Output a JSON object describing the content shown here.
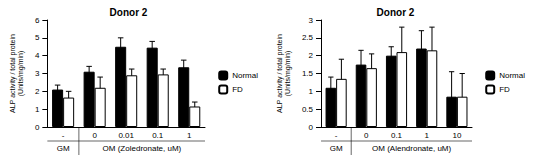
{
  "chart_data": [
    {
      "type": "bar",
      "title": "Donor 2",
      "y_label": "ALP activity / total protein\n(Units/mg/min)",
      "categories": [
        "-",
        "0",
        "0.01",
        "0.1",
        "1"
      ],
      "category_groups": [
        "GM",
        "OM (Zoledronate, uM)",
        "OM (Zoledronate, uM)",
        "OM (Zoledronate, uM)",
        "OM (Zoledronate, uM)"
      ],
      "series": [
        {
          "name": "Normal",
          "color": "#000000",
          "values": [
            2.1,
            3.1,
            4.5,
            4.45,
            3.35
          ],
          "errors": [
            0.25,
            0.3,
            0.5,
            0.35,
            0.4
          ]
        },
        {
          "name": "FD",
          "color": "#ffffff",
          "values": [
            1.65,
            2.2,
            2.9,
            2.95,
            1.15
          ],
          "errors": [
            0.35,
            0.6,
            0.35,
            0.3,
            0.25
          ]
        }
      ],
      "ylim": [
        0,
        6
      ],
      "yticks": [
        0,
        1,
        2,
        3,
        4,
        5,
        6
      ],
      "grid": false,
      "legend": "right"
    },
    {
      "type": "bar",
      "title": "Donor 2",
      "y_label": "ALP activity / total protein\n(Units/mg/min)",
      "categories": [
        "-",
        "0",
        "0.1",
        "1",
        "10"
      ],
      "category_groups": [
        "GM",
        "OM (Alendronate, uM)",
        "OM (Alendronate, uM)",
        "OM (Alendronate, uM)",
        "OM (Alendronate, uM)"
      ],
      "series": [
        {
          "name": "Normal",
          "color": "#000000",
          "values": [
            1.1,
            1.75,
            2.0,
            2.2,
            0.85
          ],
          "errors": [
            0.3,
            0.4,
            0.25,
            0.5,
            0.7
          ]
        },
        {
          "name": "FD",
          "color": "#ffffff",
          "values": [
            1.35,
            1.65,
            2.1,
            2.15,
            0.85
          ],
          "errors": [
            0.55,
            0.4,
            0.7,
            0.65,
            0.65
          ]
        }
      ],
      "ylim": [
        0,
        3
      ],
      "yticks": [
        0,
        0.5,
        1,
        1.5,
        2,
        2.5,
        3
      ],
      "grid": false,
      "legend": "right"
    }
  ]
}
